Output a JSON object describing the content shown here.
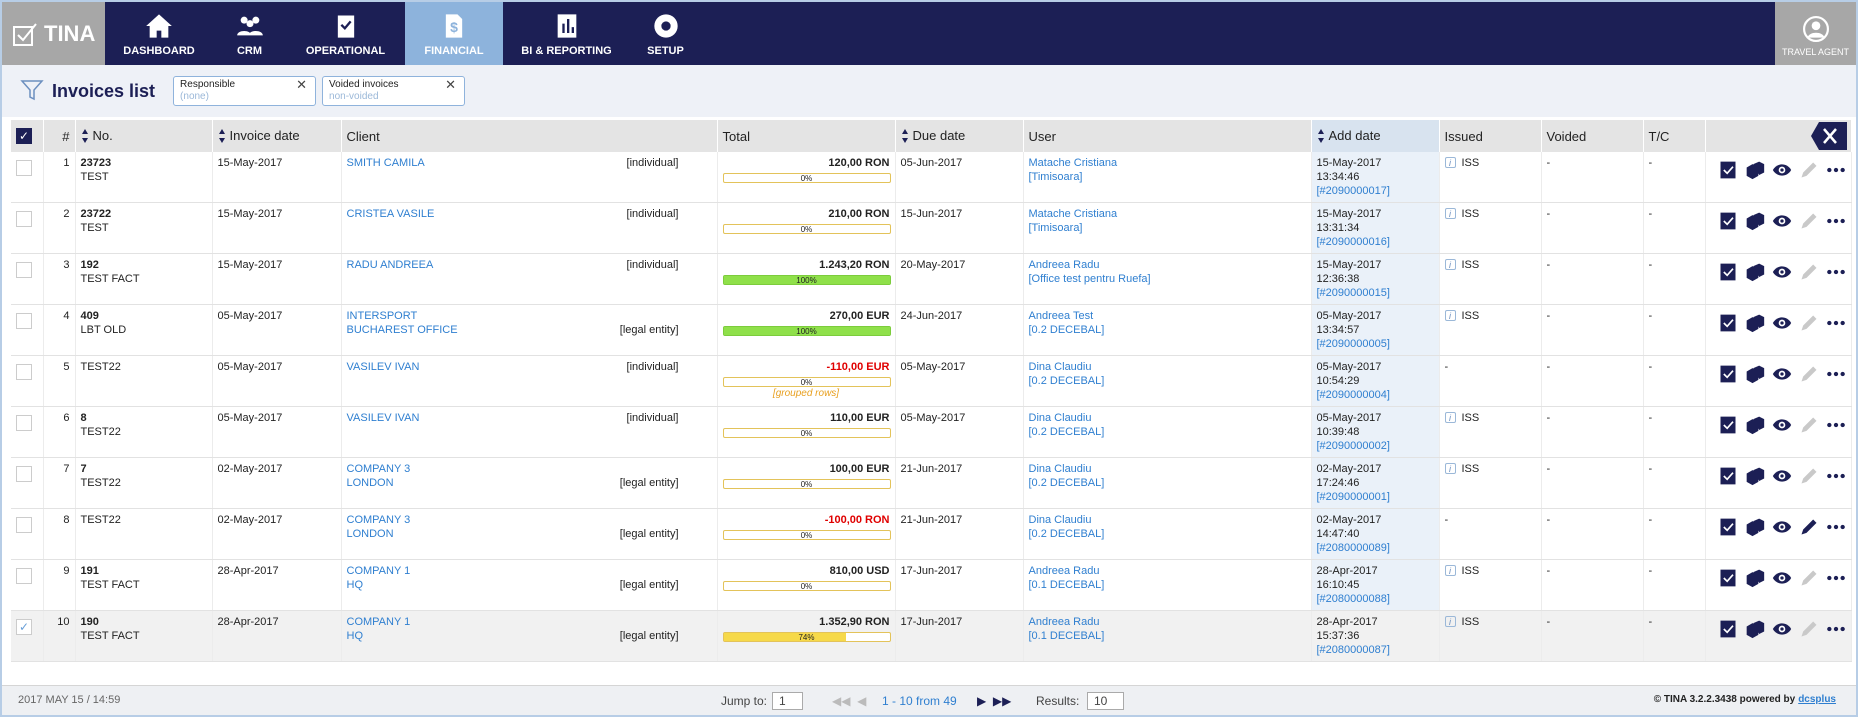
{
  "nav": {
    "logo": "TINA",
    "items": [
      "DASHBOARD",
      "CRM",
      "OPERATIONAL",
      "FINANCIAL",
      "BI & REPORTING",
      "SETUP"
    ],
    "active": 3,
    "user": "TRAVEL AGENT"
  },
  "toolbar": {
    "title": "Invoices list",
    "filters": [
      {
        "label": "Responsible",
        "value": "(none)"
      },
      {
        "label": "Voided invoices",
        "value": "non-voided"
      }
    ]
  },
  "table": {
    "headers": [
      "#",
      "No.",
      "Invoice date",
      "Client",
      "Total",
      "Due date",
      "User",
      "Add date",
      "Issued",
      "Voided",
      "T/C"
    ],
    "rows": [
      {
        "index": 1,
        "no": [
          "23723",
          "TEST"
        ],
        "date": "15-May-2017",
        "client": [
          "SMITH CAMILA"
        ],
        "client_type": "[individual]",
        "total": "120,00 RON",
        "progress": 0,
        "progress_label": "0%",
        "due": "05-Jun-2017",
        "user": "Matache Cristiana",
        "office": "[Timisoara]",
        "add_date": "15-May-2017",
        "add_time": "13:34:46",
        "add_id": "[#2090000017]",
        "issued": "ISS",
        "voided": "-",
        "tc": "-"
      },
      {
        "index": 2,
        "no": [
          "23722",
          "TEST"
        ],
        "date": "15-May-2017",
        "client": [
          "CRISTEA VASILE"
        ],
        "client_type": "[individual]",
        "total": "210,00 RON",
        "progress": 0,
        "progress_label": "0%",
        "due": "15-Jun-2017",
        "user": "Matache Cristiana",
        "office": "[Timisoara]",
        "add_date": "15-May-2017",
        "add_time": "13:31:34",
        "add_id": "[#2090000016]",
        "issued": "ISS",
        "voided": "-",
        "tc": "-"
      },
      {
        "index": 3,
        "no": [
          "192",
          "TEST FACT"
        ],
        "date": "15-May-2017",
        "client": [
          "RADU ANDREEA"
        ],
        "client_type": "[individual]",
        "total": "1.243,20 RON",
        "progress": 100,
        "progress_label": "100%",
        "due": "20-May-2017",
        "user": "Andreea Radu",
        "office": "[Office test pentru Ruefa]",
        "add_date": "15-May-2017",
        "add_time": "12:36:38",
        "add_id": "[#2090000015]",
        "issued": "ISS",
        "voided": "-",
        "tc": "-"
      },
      {
        "index": 4,
        "no": [
          "409",
          "LBT OLD"
        ],
        "date": "05-May-2017",
        "client": [
          "INTERSPORT",
          "BUCHAREST OFFICE"
        ],
        "client_type": "[legal entity]",
        "total": "270,00 EUR",
        "progress": 100,
        "progress_label": "100%",
        "due": "24-Jun-2017",
        "user": "Andreea Test",
        "office": "[0.2 DECEBAL]",
        "add_date": "05-May-2017",
        "add_time": "13:34:57",
        "add_id": "[#2090000005]",
        "issued": "ISS",
        "voided": "-",
        "tc": "-"
      },
      {
        "index": 5,
        "no": [
          "TEST22"
        ],
        "date": "05-May-2017",
        "client": [
          "VASILEV IVAN"
        ],
        "client_type": "[individual]",
        "total": "-110,00 EUR",
        "progress": 0,
        "progress_label": "0%",
        "note": "[grouped rows]",
        "due": "05-May-2017",
        "user": "Dina Claudiu",
        "office": "[0.2 DECEBAL]",
        "add_date": "05-May-2017",
        "add_time": "10:54:29",
        "add_id": "[#2090000004]",
        "issued": "-",
        "voided": "-",
        "tc": "-"
      },
      {
        "index": 6,
        "no": [
          "8",
          "TEST22"
        ],
        "date": "05-May-2017",
        "client": [
          "VASILEV IVAN"
        ],
        "client_type": "[individual]",
        "total": "110,00 EUR",
        "progress": 0,
        "progress_label": "0%",
        "due": "05-May-2017",
        "user": "Dina Claudiu",
        "office": "[0.2 DECEBAL]",
        "add_date": "05-May-2017",
        "add_time": "10:39:48",
        "add_id": "[#2090000002]",
        "issued": "ISS",
        "voided": "-",
        "tc": "-"
      },
      {
        "index": 7,
        "no": [
          "7",
          "TEST22"
        ],
        "date": "02-May-2017",
        "client": [
          "COMPANY 3",
          "LONDON"
        ],
        "client_type": "[legal entity]",
        "total": "100,00 EUR",
        "progress": 0,
        "progress_label": "0%",
        "due": "21-Jun-2017",
        "user": "Dina Claudiu",
        "office": "[0.2 DECEBAL]",
        "add_date": "02-May-2017",
        "add_time": "17:24:46",
        "add_id": "[#2090000001]",
        "issued": "ISS",
        "voided": "-",
        "tc": "-"
      },
      {
        "index": 8,
        "no": [
          "TEST22"
        ],
        "date": "02-May-2017",
        "client": [
          "COMPANY 3",
          "LONDON"
        ],
        "client_type": "[legal entity]",
        "total": "-100,00 RON",
        "progress": 0,
        "progress_label": "0%",
        "due": "21-Jun-2017",
        "user": "Dina Claudiu",
        "office": "[0.2 DECEBAL]",
        "add_date": "02-May-2017",
        "add_time": "14:47:40",
        "add_id": "[#2080000089]",
        "issued": "-",
        "voided": "-",
        "tc": "-"
      },
      {
        "index": 9,
        "no": [
          "191",
          "TEST FACT"
        ],
        "date": "28-Apr-2017",
        "client": [
          "COMPANY 1",
          "HQ"
        ],
        "client_type": "[legal entity]",
        "total": "810,00 USD",
        "progress": 0,
        "progress_label": "0%",
        "due": "17-Jun-2017",
        "user": "Andreea Radu",
        "office": "[0.1 DECEBAL]",
        "add_date": "28-Apr-2017",
        "add_time": "16:10:45",
        "add_id": "[#2080000088]",
        "issued": "ISS",
        "voided": "-",
        "tc": "-"
      },
      {
        "index": 10,
        "no": [
          "190",
          "TEST FACT"
        ],
        "date": "28-Apr-2017",
        "client": [
          "COMPANY 1",
          "HQ"
        ],
        "client_type": "[legal entity]",
        "total": "1.352,90 RON",
        "progress": 74,
        "progress_label": "74%",
        "due": "17-Jun-2017",
        "user": "Andreea Radu",
        "office": "[0.1 DECEBAL]",
        "add_date": "28-Apr-2017",
        "add_time": "15:37:36",
        "add_id": "[#2080000087]",
        "issued": "ISS",
        "voided": "-",
        "tc": "-",
        "selected": true
      }
    ]
  },
  "footer": {
    "timestamp": "2017 MAY 15 / 14:59",
    "jump_label": "Jump to:",
    "page": "1",
    "range": "1 - 10 from 49",
    "results_label": "Results:",
    "results": "10",
    "copyright": "© TINA 3.2.2.3438 powered by",
    "link": "dcsplus"
  }
}
